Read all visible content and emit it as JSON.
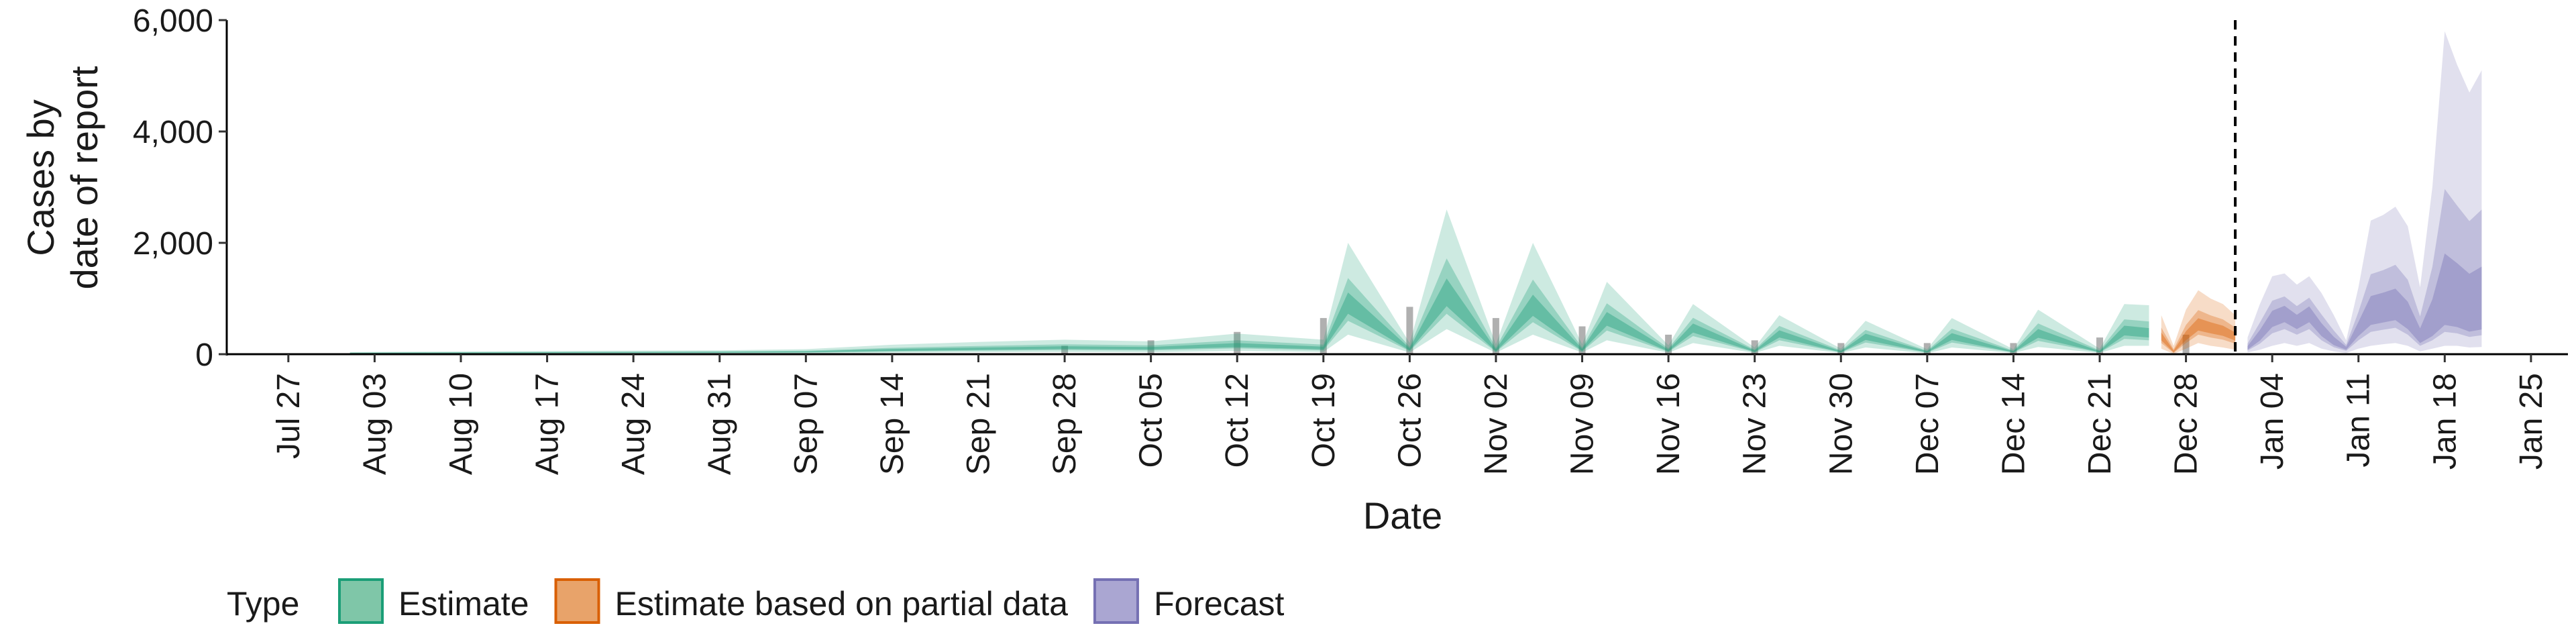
{
  "chart_data": {
    "type": "area",
    "xlabel": "Date",
    "ylabel_lines": [
      "Cases by",
      "date of report"
    ],
    "ylim": [
      0,
      6000
    ],
    "xlim": [
      "2020-07-22",
      "2021-01-28"
    ],
    "y_ticks": [
      0,
      2000,
      4000,
      6000
    ],
    "y_tick_labels": [
      "0",
      "2,000",
      "4,000",
      "6,000"
    ],
    "x_ticks": [
      "2020-07-27",
      "2020-08-03",
      "2020-08-10",
      "2020-08-17",
      "2020-08-24",
      "2020-08-31",
      "2020-09-07",
      "2020-09-14",
      "2020-09-21",
      "2020-09-28",
      "2020-10-05",
      "2020-10-12",
      "2020-10-19",
      "2020-10-26",
      "2020-11-02",
      "2020-11-09",
      "2020-11-16",
      "2020-11-23",
      "2020-11-30",
      "2020-12-07",
      "2020-12-14",
      "2020-12-21",
      "2020-12-28",
      "2021-01-04",
      "2021-01-11",
      "2021-01-18",
      "2021-01-25"
    ],
    "x_tick_labels": [
      "Jul 27",
      "Aug 03",
      "Aug 10",
      "Aug 17",
      "Aug 24",
      "Aug 31",
      "Sep 07",
      "Sep 14",
      "Sep 21",
      "Sep 28",
      "Oct 05",
      "Oct 12",
      "Oct 19",
      "Oct 26",
      "Nov 02",
      "Nov 09",
      "Nov 16",
      "Nov 23",
      "Nov 30",
      "Dec 07",
      "Dec 14",
      "Dec 21",
      "Dec 28",
      "Jan 04",
      "Jan 11",
      "Jan 18",
      "Jan 25"
    ],
    "forecast_start_line": "2021-01-01",
    "legend": {
      "title": "Type",
      "position": "bottom",
      "entries": [
        {
          "label": "Estimate",
          "fill": "#7fc6a8",
          "stroke": "#1b9e77"
        },
        {
          "label": "Estimate based on partial data",
          "fill": "#e8a36a",
          "stroke": "#d95f02"
        },
        {
          "label": "Forecast",
          "fill": "#aaa6d2",
          "stroke": "#7570b3"
        }
      ]
    },
    "series": [
      {
        "name": "Estimate",
        "color": "#1b9e77",
        "x": [
          "2020-08-01",
          "2020-08-10",
          "2020-08-20",
          "2020-08-31",
          "2020-09-07",
          "2020-09-14",
          "2020-09-21",
          "2020-09-28",
          "2020-10-05",
          "2020-10-12",
          "2020-10-19",
          "2020-10-21",
          "2020-10-26",
          "2020-10-29",
          "2020-11-02",
          "2020-11-05",
          "2020-11-09",
          "2020-11-11",
          "2020-11-16",
          "2020-11-18",
          "2020-11-23",
          "2020-11-25",
          "2020-11-30",
          "2020-12-02",
          "2020-12-07",
          "2020-12-09",
          "2020-12-14",
          "2020-12-16",
          "2020-12-21",
          "2020-12-23",
          "2020-12-25"
        ],
        "median": [
          20,
          25,
          30,
          35,
          40,
          70,
          90,
          110,
          100,
          150,
          100,
          850,
          80,
          1000,
          60,
          800,
          70,
          600,
          60,
          450,
          50,
          350,
          40,
          300,
          40,
          300,
          40,
          350,
          40,
          400,
          350
        ],
        "lower_90": [
          5,
          8,
          10,
          12,
          15,
          25,
          35,
          40,
          35,
          60,
          40,
          350,
          30,
          450,
          25,
          350,
          30,
          250,
          25,
          200,
          20,
          150,
          20,
          120,
          15,
          120,
          20,
          130,
          20,
          150,
          150
        ],
        "upper_90": [
          40,
          50,
          60,
          70,
          90,
          170,
          220,
          260,
          230,
          370,
          260,
          2000,
          200,
          2600,
          180,
          2000,
          180,
          1300,
          160,
          900,
          120,
          700,
          100,
          600,
          90,
          650,
          90,
          800,
          100,
          900,
          880
        ]
      },
      {
        "name": "Estimate based on partial data",
        "color": "#d95f02",
        "x": [
          "2020-12-26",
          "2020-12-27",
          "2020-12-28",
          "2020-12-29",
          "2020-12-30",
          "2020-12-31",
          "2021-01-01"
        ],
        "median": [
          300,
          40,
          300,
          500,
          450,
          400,
          300
        ],
        "lower_90": [
          100,
          5,
          100,
          200,
          150,
          120,
          80
        ],
        "upper_90": [
          700,
          150,
          800,
          1150,
          1000,
          900,
          700
        ]
      },
      {
        "name": "Forecast",
        "color": "#7570b3",
        "x": [
          "2021-01-02",
          "2021-01-03",
          "2021-01-04",
          "2021-01-05",
          "2021-01-06",
          "2021-01-07",
          "2021-01-08",
          "2021-01-09",
          "2021-01-10",
          "2021-01-11",
          "2021-01-12",
          "2021-01-13",
          "2021-01-14",
          "2021-01-15",
          "2021-01-16",
          "2021-01-17",
          "2021-01-18",
          "2021-01-19",
          "2021-01-20",
          "2021-01-21"
        ],
        "median": [
          100,
          300,
          600,
          700,
          550,
          700,
          400,
          200,
          100,
          400,
          650,
          700,
          750,
          550,
          250,
          400,
          650,
          600,
          500,
          550
        ],
        "lower_90": [
          30,
          80,
          150,
          200,
          150,
          200,
          100,
          50,
          20,
          100,
          150,
          180,
          200,
          150,
          50,
          100,
          150,
          150,
          120,
          130
        ],
        "upper_90": [
          300,
          900,
          1400,
          1450,
          1250,
          1400,
          1100,
          700,
          250,
          1200,
          2400,
          2500,
          2650,
          2300,
          1200,
          3000,
          5800,
          5200,
          4700,
          5100
        ]
      }
    ],
    "observed_cases": {
      "x": [
        "2020-09-28",
        "2020-10-05",
        "2020-10-12",
        "2020-10-19",
        "2020-10-26",
        "2020-11-02",
        "2020-11-09",
        "2020-11-16",
        "2020-11-23",
        "2020-11-30",
        "2020-12-07",
        "2020-12-14",
        "2020-12-21",
        "2020-12-28"
      ],
      "values": [
        150,
        250,
        400,
        650,
        850,
        650,
        500,
        350,
        250,
        200,
        200,
        200,
        300,
        350
      ]
    }
  }
}
